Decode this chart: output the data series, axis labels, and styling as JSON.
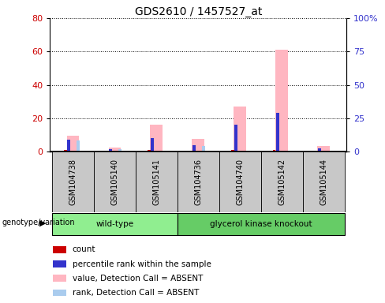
{
  "title": "GDS2610 / 1457527_at",
  "samples": [
    "GSM104738",
    "GSM105140",
    "GSM105141",
    "GSM104736",
    "GSM104740",
    "GSM105142",
    "GSM105144"
  ],
  "groups": {
    "wild-type": [
      0,
      1,
      2
    ],
    "glycerol kinase knockout": [
      3,
      4,
      5,
      6
    ]
  },
  "group_colors": {
    "wild-type": "#90EE90",
    "glycerol kinase knockout": "#66CC66"
  },
  "left_ylim": [
    0,
    80
  ],
  "right_ylim": [
    0,
    100
  ],
  "left_yticks": [
    0,
    20,
    40,
    60,
    80
  ],
  "right_yticks": [
    0,
    25,
    50,
    75,
    100
  ],
  "right_yticklabels": [
    "0",
    "25",
    "50",
    "75",
    "100%"
  ],
  "bars": {
    "GSM104738": {
      "count": 1,
      "percentile": 7,
      "value_absent": 9.5,
      "rank_absent": 6.5
    },
    "GSM105140": {
      "count": 0,
      "percentile": 1.5,
      "value_absent": 2.5,
      "rank_absent": 1.2
    },
    "GSM105141": {
      "count": 1,
      "percentile": 8,
      "value_absent": 16.0,
      "rank_absent": 0
    },
    "GSM104736": {
      "count": 0,
      "percentile": 4,
      "value_absent": 7.5,
      "rank_absent": 3.5
    },
    "GSM104740": {
      "count": 1,
      "percentile": 16,
      "value_absent": 27.0,
      "rank_absent": 0
    },
    "GSM105142": {
      "count": 1,
      "percentile": 23,
      "value_absent": 61.0,
      "rank_absent": 0
    },
    "GSM105144": {
      "count": 0,
      "percentile": 2,
      "value_absent": 3.5,
      "rank_absent": 0
    }
  },
  "colors": {
    "count": "#CC0000",
    "percentile": "#3333CC",
    "value_absent": "#FFB6C1",
    "rank_absent": "#AACCEE"
  },
  "legend_labels": [
    "count",
    "percentile rank within the sample",
    "value, Detection Call = ABSENT",
    "rank, Detection Call = ABSENT"
  ],
  "legend_colors": [
    "#CC0000",
    "#3333CC",
    "#FFB6C1",
    "#AACCEE"
  ],
  "left_ylabel_color": "#CC0000",
  "right_ylabel_color": "#3333CC",
  "sample_box_color": "#C8C8C8",
  "genotype_label": "genotype/variation"
}
